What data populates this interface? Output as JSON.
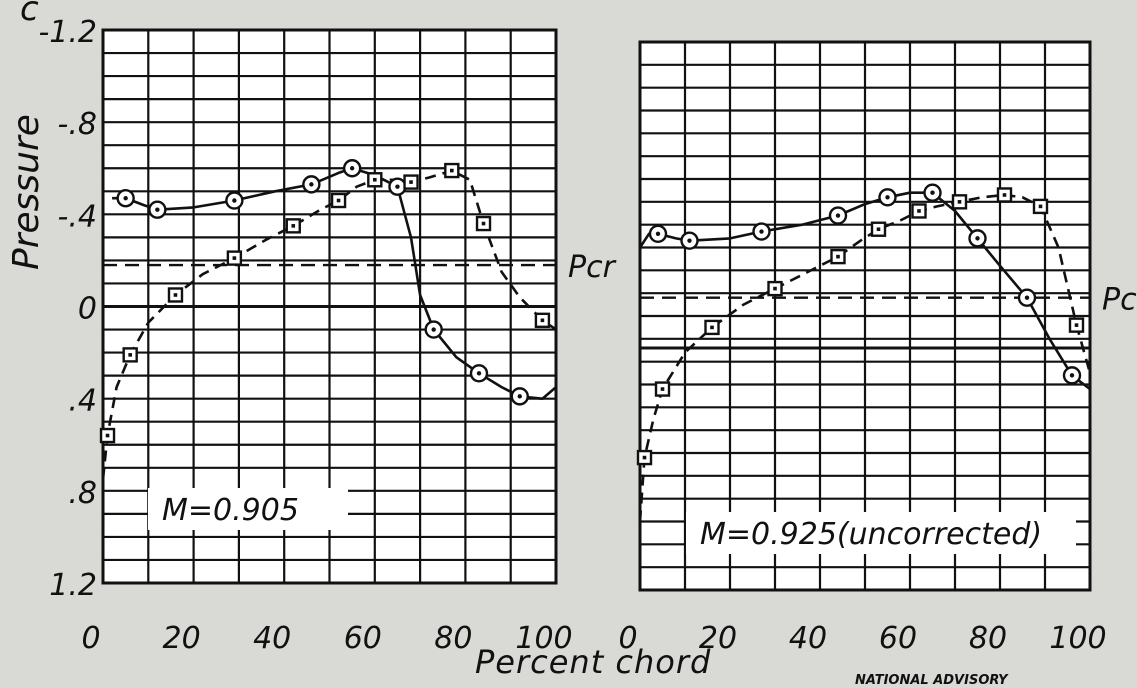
{
  "labels": {
    "corner_fragment": "c",
    "ylabel": "Pressure",
    "xlabel": "Percent chord",
    "footer_note": "NATIONAL ADVISORY"
  },
  "chart_data": [
    {
      "type": "line",
      "annotation": "M=0.905",
      "x_ticks": [
        "0",
        "20",
        "40",
        "60",
        "80",
        "100"
      ],
      "y_ticks": [
        "-1.2",
        "-.8",
        "-.4",
        "0",
        ".4",
        ".8",
        "1.2"
      ],
      "xlim": [
        0,
        100
      ],
      "ylim": [
        -1.2,
        1.2
      ],
      "y_axis_inverted": true,
      "grid": true,
      "critical_pressure": {
        "label": "Pcr",
        "value": -0.18
      },
      "zero_line": 0,
      "series": [
        {
          "marker": "circle",
          "line_style": "solid",
          "x": [
            5,
            12,
            29,
            46,
            55,
            65,
            73,
            83,
            92
          ],
          "y": [
            -0.47,
            -0.42,
            -0.46,
            -0.53,
            -0.6,
            -0.52,
            0.1,
            0.29,
            0.39
          ],
          "curve_x": [
            2,
            5,
            9,
            12,
            20,
            29,
            38,
            46,
            52,
            55,
            60,
            65,
            68,
            70,
            73,
            78,
            83,
            88,
            92,
            97,
            100
          ],
          "curve_y": [
            -0.47,
            -0.47,
            -0.44,
            -0.42,
            -0.43,
            -0.46,
            -0.5,
            -0.53,
            -0.58,
            -0.6,
            -0.57,
            -0.52,
            -0.3,
            -0.05,
            0.1,
            0.22,
            0.29,
            0.35,
            0.39,
            0.4,
            0.35
          ]
        },
        {
          "marker": "square",
          "line_style": "dashed",
          "x": [
            1,
            6,
            16,
            29,
            42,
            52,
            60,
            68,
            77,
            84,
            97
          ],
          "y": [
            0.56,
            0.21,
            -0.05,
            -0.21,
            -0.35,
            -0.46,
            -0.55,
            -0.54,
            -0.59,
            -0.36,
            0.06
          ],
          "curve_x": [
            0,
            1,
            3,
            6,
            10,
            16,
            22,
            29,
            36,
            42,
            48,
            52,
            56,
            60,
            64,
            68,
            72,
            77,
            81,
            84,
            88,
            92,
            97,
            100
          ],
          "curve_y": [
            0.75,
            0.56,
            0.35,
            0.21,
            0.07,
            -0.05,
            -0.14,
            -0.21,
            -0.29,
            -0.35,
            -0.42,
            -0.46,
            -0.52,
            -0.55,
            -0.55,
            -0.54,
            -0.56,
            -0.59,
            -0.55,
            -0.36,
            -0.15,
            -0.04,
            0.06,
            0.1
          ]
        }
      ]
    },
    {
      "type": "line",
      "annotation": "M=0.925(uncorrected)",
      "x_ticks": [
        "0",
        "20",
        "40",
        "60",
        "80",
        "100"
      ],
      "xlim": [
        0,
        100
      ],
      "ylim": [
        -1.2,
        1.2
      ],
      "y_axis_inverted": true,
      "grid": true,
      "critical_pressure": {
        "label": "Pcr",
        "value": -0.08
      },
      "zero_line": 0.14,
      "series": [
        {
          "marker": "circle",
          "line_style": "solid",
          "x": [
            4,
            11,
            27,
            44,
            55,
            65,
            75,
            86,
            96
          ],
          "y": [
            -0.36,
            -0.33,
            -0.37,
            -0.44,
            -0.52,
            -0.54,
            -0.34,
            -0.08,
            0.26
          ],
          "curve_x": [
            0,
            2,
            4,
            8,
            11,
            20,
            27,
            36,
            44,
            50,
            55,
            60,
            65,
            70,
            75,
            80,
            86,
            91,
            96,
            100
          ],
          "curve_y": [
            -0.3,
            -0.36,
            -0.36,
            -0.34,
            -0.33,
            -0.34,
            -0.37,
            -0.4,
            -0.44,
            -0.49,
            -0.52,
            -0.54,
            -0.54,
            -0.46,
            -0.34,
            -0.22,
            -0.08,
            0.1,
            0.26,
            0.32
          ]
        },
        {
          "marker": "square",
          "line_style": "dashed",
          "x": [
            1,
            5,
            16,
            30,
            44,
            53,
            62,
            71,
            81,
            89,
            97
          ],
          "y": [
            0.62,
            0.32,
            0.05,
            -0.12,
            -0.26,
            -0.38,
            -0.46,
            -0.5,
            -0.53,
            -0.48,
            0.04
          ],
          "curve_x": [
            0,
            1,
            3,
            5,
            10,
            16,
            23,
            30,
            37,
            44,
            49,
            53,
            58,
            62,
            66,
            71,
            76,
            81,
            85,
            89,
            93,
            97,
            100
          ],
          "curve_y": [
            0.9,
            0.62,
            0.45,
            0.32,
            0.16,
            0.05,
            -0.05,
            -0.12,
            -0.19,
            -0.26,
            -0.33,
            -0.38,
            -0.42,
            -0.46,
            -0.48,
            -0.5,
            -0.52,
            -0.53,
            -0.52,
            -0.48,
            -0.3,
            0.04,
            0.25
          ]
        }
      ]
    }
  ]
}
